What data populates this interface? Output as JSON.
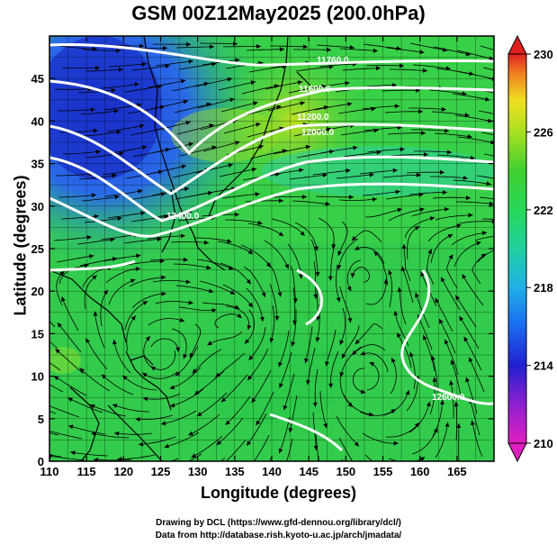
{
  "title": "GSM 00Z12May2025 (200.0hPa)",
  "x_axis": {
    "label": "Longitude (degrees)",
    "ticks": [
      "110",
      "115",
      "120",
      "125",
      "130",
      "135",
      "140",
      "145",
      "150",
      "155",
      "160",
      "165"
    ]
  },
  "y_axis": {
    "label": "Latitude  (degrees)",
    "ticks": [
      "0",
      "5",
      "10",
      "15",
      "20",
      "25",
      "30",
      "35",
      "40",
      "45"
    ]
  },
  "colorbar": {
    "labels": [
      "230",
      "226",
      "222",
      "218",
      "214",
      "210"
    ]
  },
  "contour_labels": [
    "11760.0",
    "11600.0",
    "11200.0",
    "12000.0",
    "12400.0",
    "12600.0"
  ],
  "credits": [
    "Drawing by DCL (https://www.gfd-dennou.org/library/dcl/)",
    "Data from http://database.rish.kyoto-u.ac.jp/arch/jmadata/"
  ],
  "chart_data": {
    "type": "heatmap",
    "title": "GSM 00Z12May2025 (200.0hPa)",
    "xlabel": "Longitude (degrees)",
    "ylabel": "Latitude  (degrees)",
    "xlim": [
      110,
      170
    ],
    "ylim": [
      0,
      50
    ],
    "colorbar_range": [
      210,
      230
    ],
    "contour_labels": [
      "11760.0",
      "11600.0",
      "11200.0",
      "12000.0",
      "12400.0",
      "12600.0"
    ]
  }
}
